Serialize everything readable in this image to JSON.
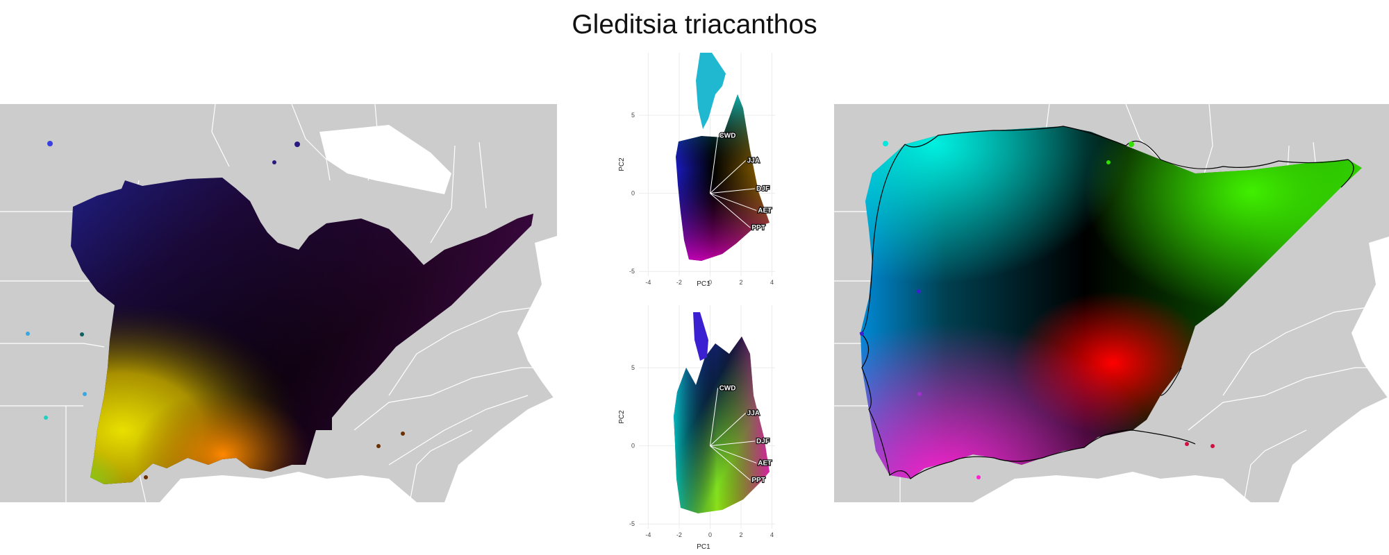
{
  "title": "Gleditsia triacanthos",
  "colors": {
    "map_bg": "#cccccc",
    "state_lines": "#ffffff",
    "panel_grid": "#ebebeb",
    "loading_line": "#ffffff"
  },
  "chart_data": [
    {
      "type": "map",
      "name": "",
      "coloring": "climate PCA RGB (continuous raster)",
      "region_color_samples": [
        "#2a1a8a",
        "#000000",
        "#b5a800",
        "#ff8a00",
        "#6acc18"
      ]
    },
    {
      "type": "scatter",
      "xlabel": "PC1",
      "ylabel": "PC2",
      "xticks": [
        -4,
        -2,
        0,
        2,
        4
      ],
      "yticks": [
        -5,
        0,
        5
      ],
      "xlim": [
        -4.6,
        4.2
      ],
      "ylim": [
        -5.3,
        9
      ],
      "grid": true,
      "loadings": [
        {
          "label": "CWD",
          "x": 0.5,
          "y": 3.7
        },
        {
          "label": "JJA",
          "x": 2.3,
          "y": 2.1
        },
        {
          "label": "DJF",
          "x": 2.9,
          "y": 0.3
        },
        {
          "label": "AET",
          "x": 3.0,
          "y": -1.1
        },
        {
          "label": "PPT",
          "x": 2.6,
          "y": -2.2
        }
      ]
    },
    {
      "type": "scatter",
      "xlabel": "PC1",
      "ylabel": "PC2",
      "xticks": [
        -4,
        -2,
        0,
        2,
        4
      ],
      "yticks": [
        -5,
        0,
        5
      ],
      "xlim": [
        -4.6,
        4.2
      ],
      "ylim": [
        -5.3,
        9
      ],
      "grid": true,
      "loadings": [
        {
          "label": "CWD",
          "x": 0.5,
          "y": 3.7
        },
        {
          "label": "JJA",
          "x": 2.3,
          "y": 2.1
        },
        {
          "label": "DJF",
          "x": 2.9,
          "y": 0.3
        },
        {
          "label": "AET",
          "x": 3.0,
          "y": -1.1
        },
        {
          "label": "PPT",
          "x": 2.6,
          "y": -2.2
        }
      ]
    },
    {
      "type": "map",
      "name": "",
      "coloring": "climate PCA RGB (interpolated, hulled)",
      "region_color_samples": [
        "#00e8e0",
        "#000000",
        "#40e000",
        "#ff0000",
        "#ff00c8"
      ]
    }
  ]
}
